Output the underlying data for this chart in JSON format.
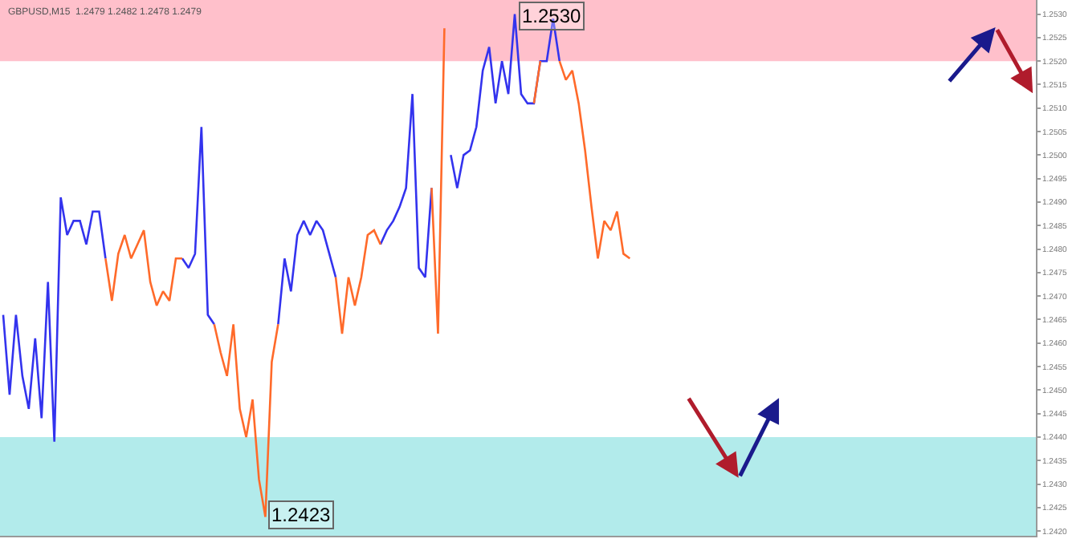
{
  "chart_data": {
    "type": "line",
    "title": "GBPUSD,M15  1.2479 1.2482 1.2478 1.2479",
    "categories": [
      null,
      null,
      null,
      null,
      null,
      null,
      null,
      null,
      null,
      null,
      null,
      null,
      null,
      null,
      null,
      null,
      null,
      null,
      null,
      null,
      null,
      null,
      null,
      null,
      null,
      null,
      null,
      null,
      null,
      null,
      null,
      null,
      null,
      null,
      null,
      null,
      null,
      null,
      null,
      null,
      null,
      null,
      null,
      null,
      null,
      null,
      null,
      null,
      null,
      null,
      null,
      null,
      null,
      null,
      null,
      null,
      null,
      null,
      null,
      null,
      null,
      null,
      null,
      null,
      null,
      null,
      null,
      null,
      null,
      null,
      null,
      null,
      null,
      null,
      null,
      null,
      null,
      null,
      null,
      null,
      null,
      null,
      null,
      null,
      null,
      null,
      null,
      null,
      null,
      null,
      null,
      null,
      null,
      null,
      null,
      null,
      null,
      null,
      null,
      null,
      null,
      null,
      null,
      null,
      null,
      null,
      null,
      null,
      null,
      null,
      null,
      null,
      null,
      null,
      null,
      null,
      null,
      null,
      null,
      null,
      null,
      null,
      null,
      null,
      null,
      null,
      null,
      null,
      null,
      null,
      null,
      null,
      null,
      null,
      null,
      null,
      null,
      null,
      null,
      null,
      null,
      null,
      null,
      null,
      null,
      null,
      null,
      null,
      null,
      null,
      null,
      null,
      null,
      null,
      null,
      null,
      null,
      null,
      null,
      null,
      null,
      null
    ],
    "series": [
      {
        "color": "#3333ee",
        "values": [
          1.2466,
          1.2449,
          1.2466,
          1.2453,
          1.2446,
          1.2461,
          1.2444,
          1.2473,
          1.2439,
          1.2491,
          1.2483,
          1.2486,
          1.2486,
          1.2481,
          1.2488,
          1.2488,
          1.2478,
          null,
          null,
          null,
          null,
          null,
          null,
          null,
          null,
          null,
          null,
          null,
          1.2478,
          1.2476,
          1.2479,
          1.2506,
          1.2466,
          1.2464,
          null,
          null,
          null,
          null,
          null,
          null,
          null,
          null,
          null,
          1.2464,
          1.2478,
          1.2471,
          1.2483,
          1.2486,
          1.2483,
          1.2486,
          1.2484,
          1.2479,
          1.2474,
          null,
          null,
          null,
          null,
          null,
          null,
          1.2481,
          1.2484,
          1.2486,
          1.2489,
          1.2493,
          1.2513,
          1.2476,
          1.2474,
          1.2493,
          null,
          null,
          1.25,
          1.2493,
          1.25,
          1.2501,
          1.2506,
          1.2518,
          1.2523,
          1.2511,
          1.252,
          1.2513,
          1.253,
          1.2513,
          1.2511,
          1.2511,
          1.252,
          1.252,
          1.2529,
          1.252,
          null,
          null,
          null,
          null,
          null,
          null,
          null,
          null,
          null,
          null,
          null,
          null,
          null,
          null,
          null,
          null,
          null,
          null,
          null,
          null,
          null,
          null,
          null,
          null,
          null,
          null,
          null,
          null,
          null,
          null,
          null,
          null,
          null,
          null,
          null,
          null,
          null,
          null,
          null,
          null,
          null,
          null,
          null,
          null,
          null,
          null,
          null,
          null,
          null,
          null,
          null,
          null,
          null,
          null,
          null,
          null,
          null,
          null,
          null,
          null,
          null,
          null,
          null,
          null,
          null,
          null,
          null,
          null,
          null,
          null,
          null,
          null,
          null,
          null
        ]
      },
      {
        "color": "#ff6a2a",
        "values": [
          null,
          null,
          null,
          null,
          null,
          null,
          null,
          null,
          null,
          null,
          null,
          null,
          null,
          null,
          null,
          null,
          1.2478,
          1.2469,
          1.2479,
          1.2483,
          1.2478,
          1.2481,
          1.2484,
          1.2473,
          1.2468,
          1.2471,
          1.2469,
          1.2478,
          1.2478,
          null,
          null,
          null,
          null,
          1.2464,
          1.2458,
          1.2453,
          1.2464,
          1.2446,
          1.244,
          1.2448,
          1.2431,
          1.2423,
          1.2456,
          1.2464,
          null,
          null,
          null,
          null,
          null,
          null,
          null,
          null,
          1.2474,
          1.2462,
          1.2474,
          1.2468,
          1.2474,
          1.2483,
          1.2484,
          1.2481,
          null,
          null,
          null,
          null,
          null,
          null,
          null,
          1.2493,
          1.2462,
          1.2527,
          null,
          null,
          null,
          null,
          null,
          null,
          null,
          null,
          null,
          null,
          null,
          null,
          null,
          1.2511,
          1.252,
          null,
          null,
          1.252,
          1.2516,
          1.2518,
          1.2511,
          1.2501,
          1.2489,
          1.2478,
          1.2486,
          1.2484,
          1.2488,
          1.2479,
          1.2478,
          null,
          null,
          null,
          null,
          null,
          null,
          null,
          null,
          null,
          null,
          null,
          null,
          null,
          null,
          null,
          null,
          null,
          null,
          null,
          null,
          null,
          null,
          null,
          null,
          null,
          null,
          null,
          null,
          null,
          null,
          null,
          null,
          null,
          null,
          null,
          null,
          null,
          null,
          null,
          null,
          null,
          null,
          null,
          null,
          null,
          null,
          null,
          null,
          null,
          null,
          null,
          null,
          null,
          null,
          null,
          null,
          null,
          null,
          null,
          null,
          null,
          null,
          null
        ]
      }
    ],
    "ylim": [
      1.2419,
      1.2533
    ],
    "yticks": [
      {
        "value": 1.242,
        "label": "1.2420"
      },
      {
        "value": 1.2425,
        "label": "1.2425"
      },
      {
        "value": 1.243,
        "label": "1.2430"
      },
      {
        "value": 1.2435,
        "label": "1.2435"
      },
      {
        "value": 1.244,
        "label": "1.2440"
      },
      {
        "value": 1.2445,
        "label": "1.2445"
      },
      {
        "value": 1.245,
        "label": "1.2450"
      },
      {
        "value": 1.2455,
        "label": "1.2455"
      },
      {
        "value": 1.246,
        "label": "1.2460"
      },
      {
        "value": 1.2465,
        "label": "1.2465"
      },
      {
        "value": 1.247,
        "label": "1.2470"
      },
      {
        "value": 1.2475,
        "label": "1.2475"
      },
      {
        "value": 1.248,
        "label": "1.2480"
      },
      {
        "value": 1.2485,
        "label": "1.2485"
      },
      {
        "value": 1.249,
        "label": "1.2490"
      },
      {
        "value": 1.2495,
        "label": "1.2495"
      },
      {
        "value": 1.25,
        "label": "1.2500"
      },
      {
        "value": 1.2505,
        "label": "1.2505"
      },
      {
        "value": 1.251,
        "label": "1.2510"
      },
      {
        "value": 1.2515,
        "label": "1.2515"
      },
      {
        "value": 1.252,
        "label": "1.2520"
      },
      {
        "value": 1.2525,
        "label": "1.2525"
      },
      {
        "value": 1.253,
        "label": "1.2530"
      }
    ],
    "bands": [
      {
        "axis": "y",
        "from": 1.252,
        "to": 1.2533,
        "color": "#ffc0cb"
      },
      {
        "axis": "y",
        "from": 1.2419,
        "to": 1.244,
        "color": "#b2ebeb"
      }
    ],
    "annotations": [
      {
        "text": "1.2530",
        "y": 1.253
      },
      {
        "text": "1.2423",
        "y": 1.2423
      }
    ],
    "tick_labels": "y",
    "grid": false,
    "marker": "none",
    "line_style": "solid"
  }
}
